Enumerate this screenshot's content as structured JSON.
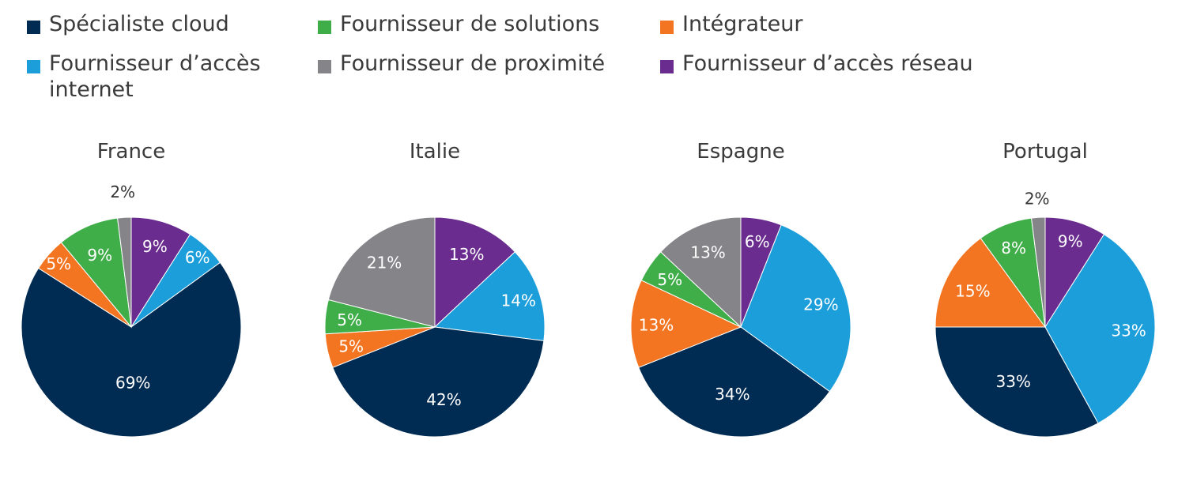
{
  "legend": [
    {
      "key": "cloud",
      "label": "Spécialiste cloud",
      "color": "#002b52"
    },
    {
      "key": "solutions",
      "label": "Fournisseur de solutions",
      "color": "#3fae49"
    },
    {
      "key": "integrateur",
      "label": "Intégrateur",
      "color": "#f37521"
    },
    {
      "key": "internet",
      "label": "Fournisseur d’accès internet",
      "color": "#1b9ed9"
    },
    {
      "key": "proximite",
      "label": "Fournisseur de proximité",
      "color": "#858589"
    },
    {
      "key": "reseau",
      "label": "Fournisseur d’accès réseau",
      "color": "#6a2c8e"
    }
  ],
  "chart_data": [
    {
      "type": "pie",
      "title": "France",
      "slices": [
        {
          "category": "Fournisseur d’accès réseau",
          "value": 9,
          "label": "9%",
          "color": "#6a2c8e",
          "label_color": "#ffffff"
        },
        {
          "category": "Fournisseur d’accès internet",
          "value": 6,
          "label": "6%",
          "color": "#1b9ed9",
          "label_color": "#ffffff"
        },
        {
          "category": "Spécialiste cloud",
          "value": 69,
          "label": "69%",
          "color": "#002b52",
          "label_color": "#ffffff"
        },
        {
          "category": "Intégrateur",
          "value": 5,
          "label": "5%",
          "color": "#f37521",
          "label_color": "#ffffff"
        },
        {
          "category": "Fournisseur de solutions",
          "value": 9,
          "label": "9%",
          "color": "#3fae49",
          "label_color": "#ffffff"
        },
        {
          "category": "Fournisseur de proximité",
          "value": 2,
          "label": "2%",
          "color": "#858589",
          "label_color": "#333333"
        }
      ]
    },
    {
      "type": "pie",
      "title": "Italie",
      "slices": [
        {
          "category": "Fournisseur d’accès réseau",
          "value": 13,
          "label": "13%",
          "color": "#6a2c8e",
          "label_color": "#ffffff"
        },
        {
          "category": "Fournisseur d’accès internet",
          "value": 14,
          "label": "14%",
          "color": "#1b9ed9",
          "label_color": "#ffffff"
        },
        {
          "category": "Spécialiste cloud",
          "value": 42,
          "label": "42%",
          "color": "#002b52",
          "label_color": "#ffffff"
        },
        {
          "category": "Intégrateur",
          "value": 5,
          "label": "5%",
          "color": "#f37521",
          "label_color": "#ffffff"
        },
        {
          "category": "Fournisseur de solutions",
          "value": 5,
          "label": "5%",
          "color": "#3fae49",
          "label_color": "#ffffff"
        },
        {
          "category": "Fournisseur de proximité",
          "value": 21,
          "label": "21%",
          "color": "#858589",
          "label_color": "#ffffff"
        }
      ]
    },
    {
      "type": "pie",
      "title": "Espagne",
      "slices": [
        {
          "category": "Fournisseur d’accès réseau",
          "value": 6,
          "label": "6%",
          "color": "#6a2c8e",
          "label_color": "#ffffff"
        },
        {
          "category": "Fournisseur d’accès internet",
          "value": 29,
          "label": "29%",
          "color": "#1b9ed9",
          "label_color": "#ffffff"
        },
        {
          "category": "Spécialiste cloud",
          "value": 34,
          "label": "34%",
          "color": "#002b52",
          "label_color": "#ffffff"
        },
        {
          "category": "Intégrateur",
          "value": 13,
          "label": "13%",
          "color": "#f37521",
          "label_color": "#ffffff"
        },
        {
          "category": "Fournisseur de solutions",
          "value": 5,
          "label": "5%",
          "color": "#3fae49",
          "label_color": "#ffffff"
        },
        {
          "category": "Fournisseur de proximité",
          "value": 13,
          "label": "13%",
          "color": "#858589",
          "label_color": "#ffffff"
        }
      ]
    },
    {
      "type": "pie",
      "title": "Portugal",
      "slices": [
        {
          "category": "Fournisseur d’accès réseau",
          "value": 9,
          "label": "9%",
          "color": "#6a2c8e",
          "label_color": "#ffffff"
        },
        {
          "category": "Fournisseur d’accès internet",
          "value": 33,
          "label": "33%",
          "color": "#1b9ed9",
          "label_color": "#ffffff"
        },
        {
          "category": "Spécialiste cloud",
          "value": 33,
          "label": "33%",
          "color": "#002b52",
          "label_color": "#ffffff"
        },
        {
          "category": "Intégrateur",
          "value": 15,
          "label": "15%",
          "color": "#f37521",
          "label_color": "#ffffff"
        },
        {
          "category": "Fournisseur de solutions",
          "value": 8,
          "label": "8%",
          "color": "#3fae49",
          "label_color": "#ffffff"
        },
        {
          "category": "Fournisseur de proximité",
          "value": 2,
          "label": "2%",
          "color": "#858589",
          "label_color": "#333333"
        }
      ]
    }
  ]
}
